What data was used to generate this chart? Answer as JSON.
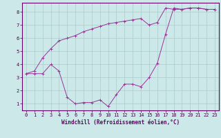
{
  "xlabel": "Windchill (Refroidissement éolien,°C)",
  "bg_color": "#cce8e8",
  "line_color": "#993399",
  "grid_color": "#aacccc",
  "xlim": [
    -0.5,
    23.5
  ],
  "ylim": [
    0.5,
    8.7
  ],
  "xticks": [
    0,
    1,
    2,
    3,
    4,
    5,
    6,
    7,
    8,
    9,
    10,
    11,
    12,
    13,
    14,
    15,
    16,
    17,
    18,
    19,
    20,
    21,
    22,
    23
  ],
  "yticks": [
    1,
    2,
    3,
    4,
    5,
    6,
    7,
    8
  ],
  "line1_x": [
    0,
    1,
    2,
    3,
    4,
    5,
    6,
    7,
    8,
    9,
    10,
    11,
    12,
    13,
    14,
    15,
    16,
    17,
    18,
    19,
    20,
    21,
    22,
    23
  ],
  "line1_y": [
    3.3,
    3.3,
    3.3,
    4.0,
    3.5,
    1.5,
    1.0,
    1.1,
    1.1,
    1.3,
    0.8,
    1.7,
    2.5,
    2.5,
    2.3,
    3.0,
    4.1,
    6.3,
    8.3,
    8.2,
    8.3,
    8.3,
    8.2,
    8.2
  ],
  "line2_x": [
    0,
    1,
    2,
    3,
    4,
    5,
    6,
    7,
    8,
    9,
    10,
    11,
    12,
    13,
    14,
    15,
    16,
    17,
    18,
    19,
    20,
    21,
    22,
    23
  ],
  "line2_y": [
    3.3,
    3.5,
    4.5,
    5.2,
    5.8,
    6.0,
    6.2,
    6.5,
    6.7,
    6.9,
    7.1,
    7.2,
    7.3,
    7.4,
    7.5,
    7.0,
    7.2,
    8.3,
    8.2,
    8.2,
    8.3,
    8.3,
    8.2,
    8.2
  ],
  "axis_color": "#660066",
  "tick_color": "#440044",
  "xlabel_fontsize": 5.5,
  "tick_fontsize": 5
}
